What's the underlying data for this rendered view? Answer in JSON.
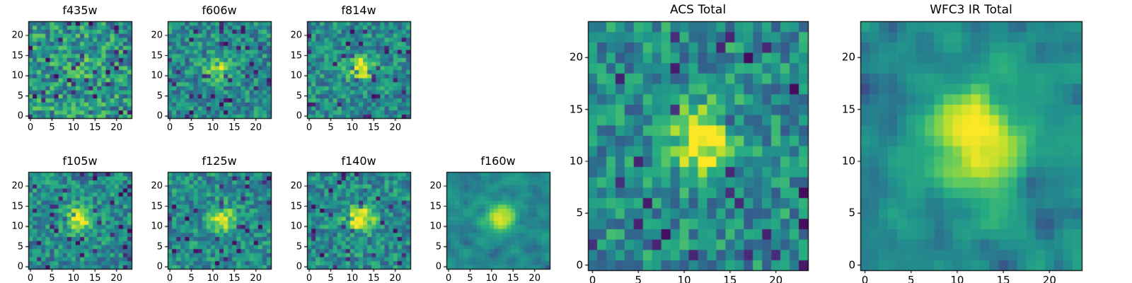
{
  "colors": {
    "background": "#ffffff",
    "axis": "#000000",
    "text": "#000000",
    "colormap_low": "#440154",
    "colormap_mid": "#21918c",
    "colormap_high": "#fde725"
  },
  "chart_data": [
    {
      "type": "heatmap",
      "title": "f435w",
      "colormap": "viridis",
      "grid_n": 24,
      "xticks": [
        0,
        5,
        10,
        15,
        20
      ],
      "yticks": [
        0,
        5,
        10,
        15,
        20
      ],
      "xlim": [
        -0.5,
        23.5
      ],
      "ylim": [
        -0.5,
        23.5
      ],
      "seed": 7,
      "noise": {
        "base": 0.26,
        "spread": 0.52,
        "dark_prob": 0.07
      },
      "source": {
        "cx": 12,
        "cy": 12,
        "amp": 0.14,
        "sigma": 1.8
      },
      "smooth": 0
    },
    {
      "type": "heatmap",
      "title": "f606w",
      "colormap": "viridis",
      "grid_n": 24,
      "xticks": [
        0,
        5,
        10,
        15,
        20
      ],
      "yticks": [
        0,
        5,
        10,
        15,
        20
      ],
      "xlim": [
        -0.5,
        23.5
      ],
      "ylim": [
        -0.5,
        23.5
      ],
      "seed": 23,
      "noise": {
        "base": 0.27,
        "spread": 0.42,
        "dark_prob": 0.06
      },
      "source": {
        "cx": 11,
        "cy": 12,
        "amp": 0.5,
        "sigma": 1.7
      },
      "smooth": 0
    },
    {
      "type": "heatmap",
      "title": "f814w",
      "colormap": "viridis",
      "grid_n": 24,
      "xticks": [
        0,
        5,
        10,
        15,
        20
      ],
      "yticks": [
        0,
        5,
        10,
        15,
        20
      ],
      "xlim": [
        -0.5,
        23.5
      ],
      "ylim": [
        -0.5,
        23.5
      ],
      "seed": 41,
      "noise": {
        "base": 0.27,
        "spread": 0.42,
        "dark_prob": 0.06
      },
      "source": {
        "cx": 12,
        "cy": 12,
        "amp": 0.55,
        "sigma": 1.9
      },
      "smooth": 0
    },
    {
      "type": "heatmap",
      "title": "f105w",
      "colormap": "viridis",
      "grid_n": 24,
      "xticks": [
        0,
        5,
        10,
        15,
        20
      ],
      "yticks": [
        0,
        5,
        10,
        15,
        20
      ],
      "xlim": [
        -0.5,
        23.5
      ],
      "ylim": [
        -0.5,
        23.5
      ],
      "seed": 59,
      "noise": {
        "base": 0.28,
        "spread": 0.4,
        "dark_prob": 0.06
      },
      "source": {
        "cx": 11,
        "cy": 12,
        "amp": 0.55,
        "sigma": 2.0
      },
      "smooth": 0
    },
    {
      "type": "heatmap",
      "title": "f125w",
      "colormap": "viridis",
      "grid_n": 24,
      "xticks": [
        0,
        5,
        10,
        15,
        20
      ],
      "yticks": [
        0,
        5,
        10,
        15,
        20
      ],
      "xlim": [
        -0.5,
        23.5
      ],
      "ylim": [
        -0.5,
        23.5
      ],
      "seed": 73,
      "noise": {
        "base": 0.28,
        "spread": 0.4,
        "dark_prob": 0.06
      },
      "source": {
        "cx": 12,
        "cy": 12,
        "amp": 0.55,
        "sigma": 2.0
      },
      "smooth": 0
    },
    {
      "type": "heatmap",
      "title": "f140w",
      "colormap": "viridis",
      "grid_n": 24,
      "xticks": [
        0,
        5,
        10,
        15,
        20
      ],
      "yticks": [
        0,
        5,
        10,
        15,
        20
      ],
      "xlim": [
        -0.5,
        23.5
      ],
      "ylim": [
        -0.5,
        23.5
      ],
      "seed": 97,
      "noise": {
        "base": 0.28,
        "spread": 0.4,
        "dark_prob": 0.05
      },
      "source": {
        "cx": 12,
        "cy": 12,
        "amp": 0.58,
        "sigma": 2.2
      },
      "smooth": 0
    },
    {
      "type": "heatmap",
      "title": "f160w",
      "colormap": "viridis",
      "grid_n": 24,
      "xticks": [
        0,
        5,
        10,
        15,
        20
      ],
      "yticks": [
        0,
        5,
        10,
        15,
        20
      ],
      "xlim": [
        -0.5,
        23.5
      ],
      "ylim": [
        -0.5,
        23.5
      ],
      "seed": 113,
      "noise": {
        "base": 0.28,
        "spread": 0.4,
        "dark_prob": 0.06
      },
      "source": {
        "cx": 12,
        "cy": 12,
        "amp": 0.62,
        "sigma": 2.4
      },
      "smooth": 1
    },
    {
      "type": "heatmap",
      "title": "ACS Total",
      "colormap": "viridis",
      "grid_n": 24,
      "xticks": [
        0,
        5,
        10,
        15,
        20
      ],
      "yticks": [
        0,
        5,
        10,
        15,
        20
      ],
      "xlim": [
        -0.5,
        23.5
      ],
      "ylim": [
        -0.5,
        23.5
      ],
      "seed": 131,
      "noise": {
        "base": 0.28,
        "spread": 0.42,
        "dark_prob": 0.05
      },
      "source": {
        "cx": 12,
        "cy": 12,
        "amp": 0.58,
        "sigma": 2.2
      },
      "smooth": 0
    },
    {
      "type": "heatmap",
      "title": "WFC3 IR Total",
      "colormap": "viridis",
      "grid_n": 24,
      "xticks": [
        0,
        5,
        10,
        15,
        20
      ],
      "yticks": [
        0,
        5,
        10,
        15,
        20
      ],
      "xlim": [
        -0.5,
        23.5
      ],
      "ylim": [
        -0.5,
        23.5
      ],
      "seed": 151,
      "noise": {
        "base": 0.33,
        "spread": 0.36,
        "dark_prob": 0.08
      },
      "source": {
        "cx": 12,
        "cy": 12,
        "amp": 0.72,
        "sigma": 3.1
      },
      "smooth": 1
    }
  ]
}
